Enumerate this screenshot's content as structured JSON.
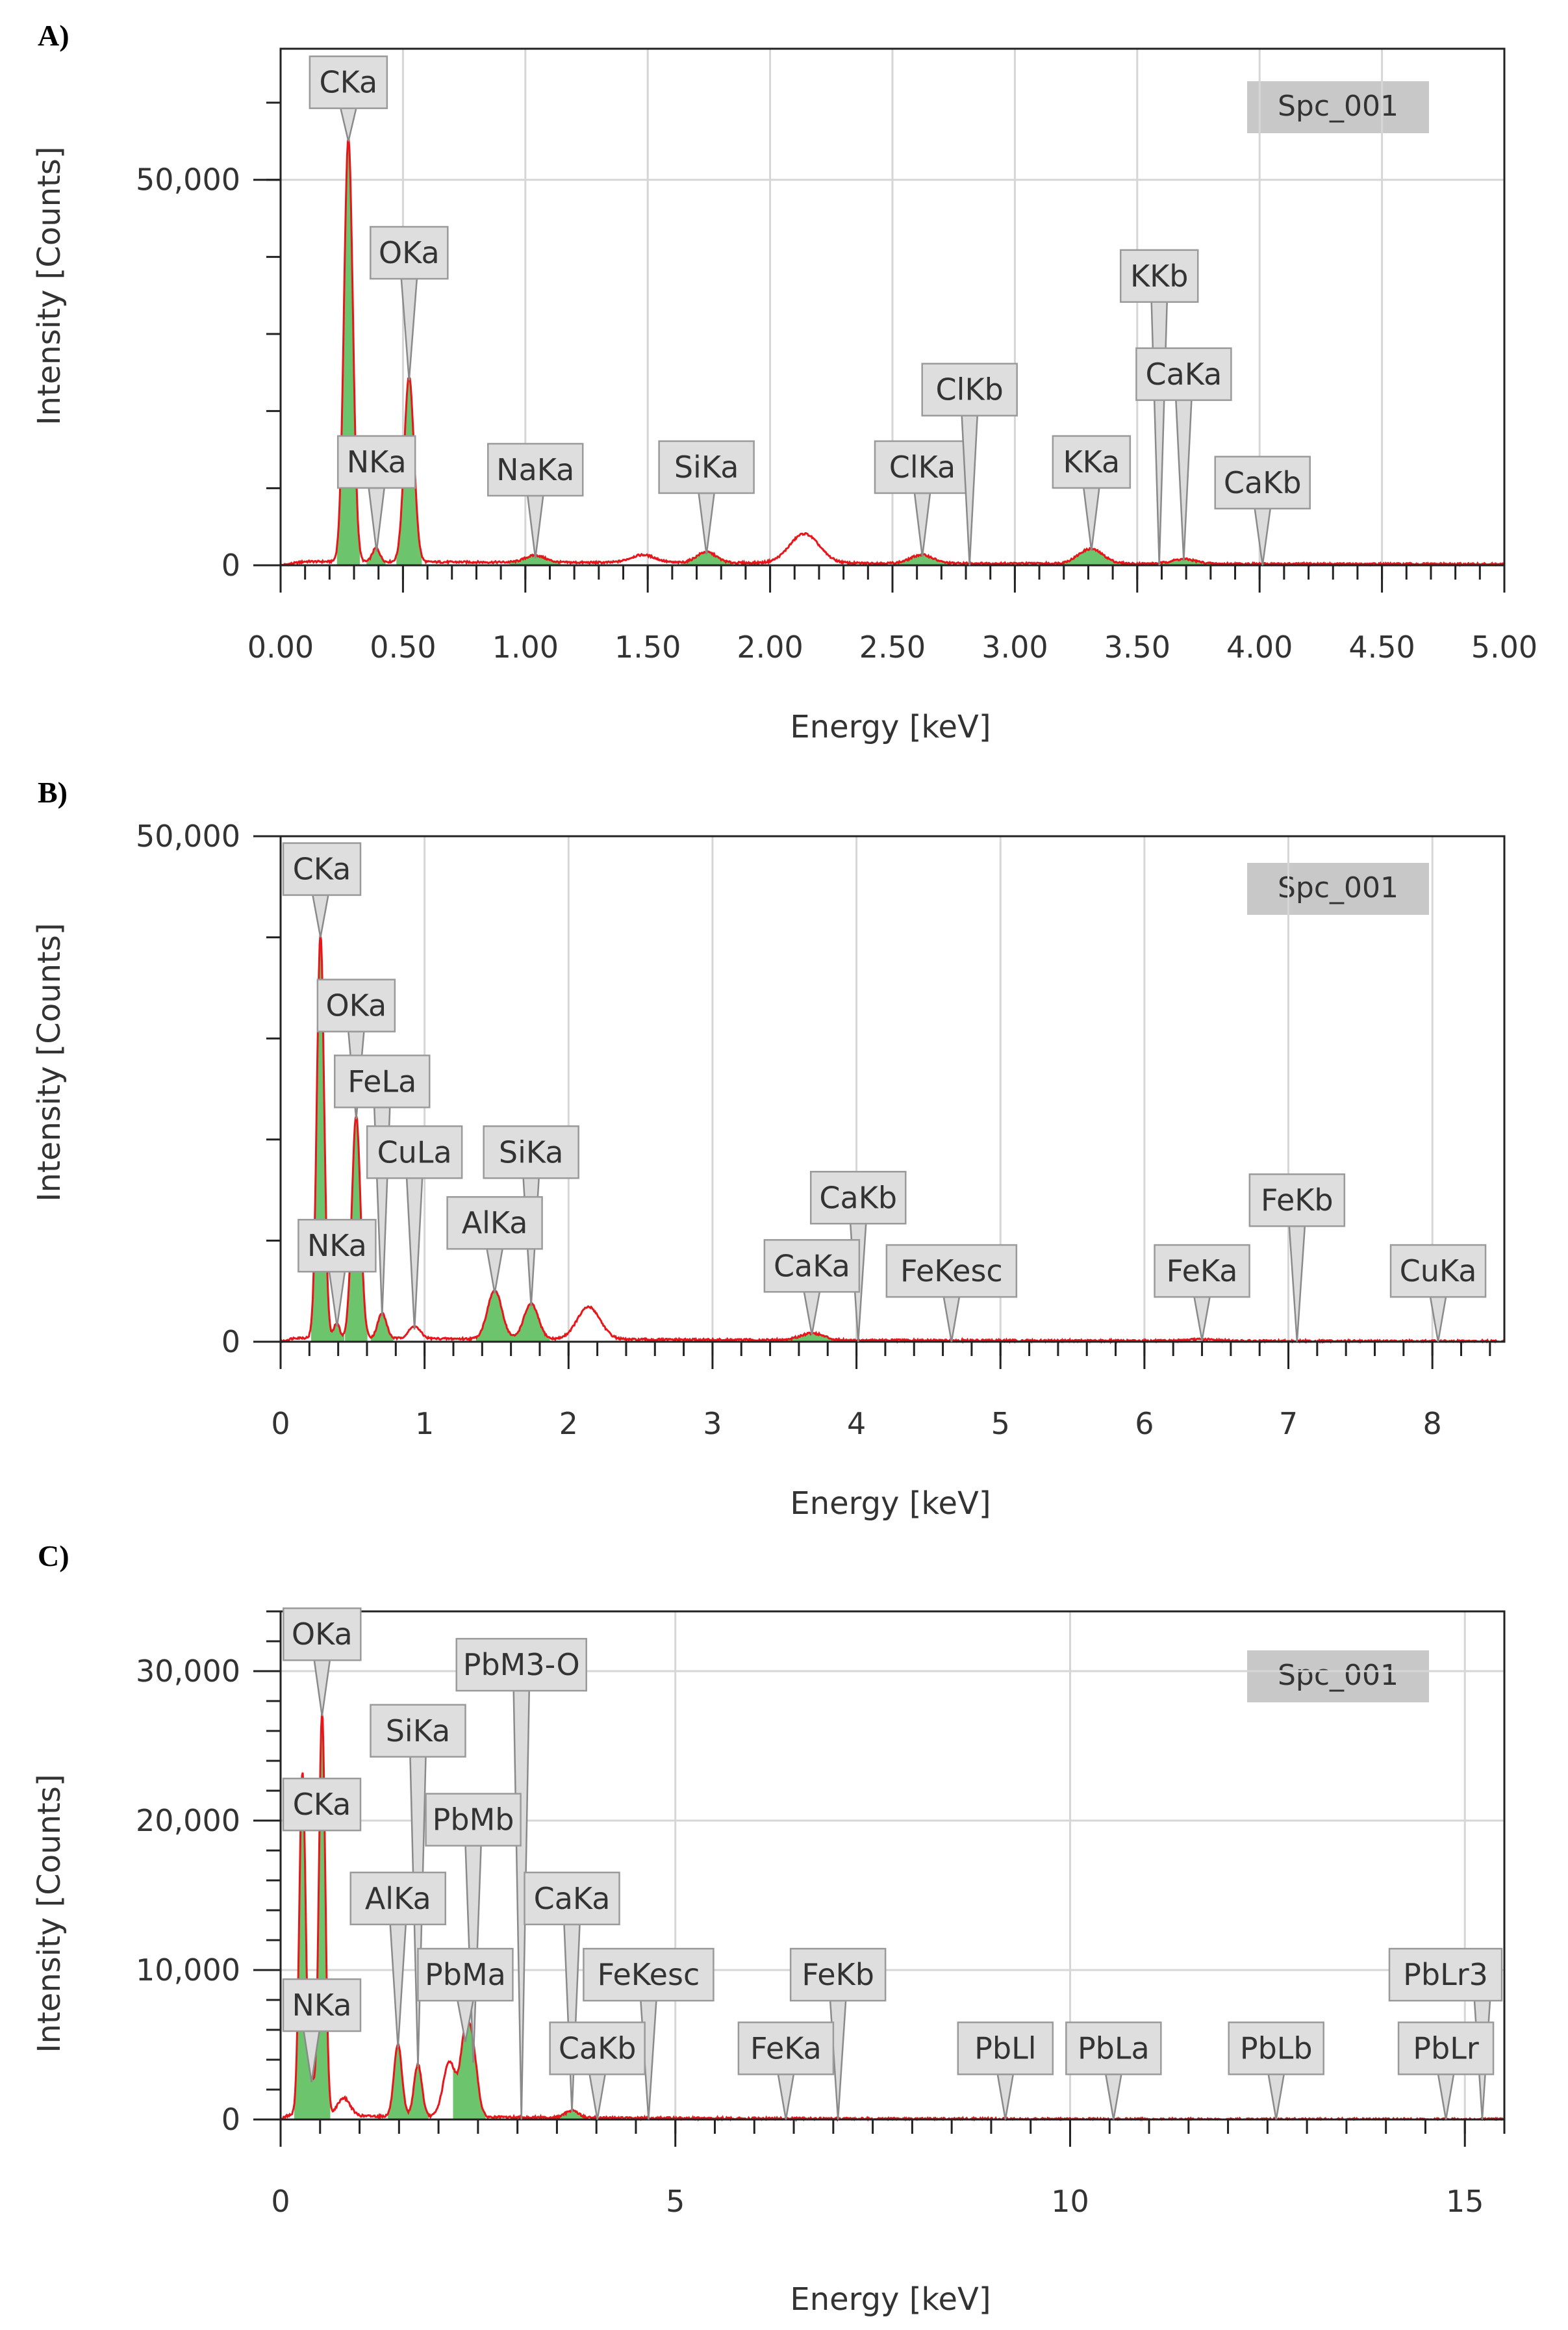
{
  "chart_data": [
    {
      "type": "line",
      "panel": "A)",
      "title": "Spc_001",
      "xlabel": "Energy [keV]",
      "ylabel": "Intensity [Counts]",
      "xlim": [
        0,
        5
      ],
      "ylim": [
        0,
        67000
      ],
      "grid": true,
      "x_ticks": [
        0,
        0.5,
        1,
        1.5,
        2,
        2.5,
        3,
        3.5,
        4,
        4.5,
        5
      ],
      "x_tick_labels": [
        "0.00",
        "0.50",
        "1.00",
        "1.50",
        "2.00",
        "2.50",
        "3.00",
        "3.50",
        "4.00",
        "4.50",
        "5.00"
      ],
      "x_minor_step": 0.1,
      "y_ticks": [
        0,
        50000
      ],
      "y_tick_labels": [
        "0",
        "50,000"
      ],
      "y_minor_step": 10000,
      "peaks": [
        {
          "x": 0.277,
          "y": 55000,
          "w": 0.018,
          "fill": true
        },
        {
          "x": 0.39,
          "y": 1800,
          "w": 0.015,
          "fill": true
        },
        {
          "x": 0.525,
          "y": 24000,
          "w": 0.02,
          "fill": true
        },
        {
          "x": 1.04,
          "y": 900,
          "w": 0.04,
          "fill": true
        },
        {
          "x": 1.48,
          "y": 1000,
          "w": 0.05,
          "fill": false
        },
        {
          "x": 1.74,
          "y": 1400,
          "w": 0.04,
          "fill": true
        },
        {
          "x": 2.14,
          "y": 3800,
          "w": 0.06,
          "fill": false
        },
        {
          "x": 2.62,
          "y": 1100,
          "w": 0.045,
          "fill": true
        },
        {
          "x": 3.31,
          "y": 1900,
          "w": 0.05,
          "fill": true
        },
        {
          "x": 3.69,
          "y": 600,
          "w": 0.05,
          "fill": true
        }
      ],
      "baseline": 500,
      "labels": [
        {
          "text": "CKa",
          "x": 0.277,
          "y": 55000,
          "level": 0.935
        },
        {
          "text": "OKa",
          "x": 0.525,
          "y": 24000,
          "level": 0.605
        },
        {
          "text": "NKa",
          "x": 0.392,
          "y": 1800,
          "level": 0.2
        },
        {
          "text": "NaKa",
          "x": 1.041,
          "y": 900,
          "level": 0.185
        },
        {
          "text": "SiKa",
          "x": 1.74,
          "y": 1400,
          "level": 0.19
        },
        {
          "text": "ClKa",
          "x": 2.622,
          "y": 1100,
          "level": 0.19
        },
        {
          "text": "ClKb",
          "x": 2.815,
          "y": 0,
          "level": 0.34
        },
        {
          "text": "KKa",
          "x": 3.313,
          "y": 1900,
          "level": 0.2
        },
        {
          "text": "KKb",
          "x": 3.59,
          "y": 0,
          "level": 0.56
        },
        {
          "text": "CaKa",
          "x": 3.69,
          "y": 600,
          "level": 0.37
        },
        {
          "text": "CaKb",
          "x": 4.012,
          "y": 0,
          "level": 0.16
        }
      ]
    },
    {
      "type": "line",
      "panel": "B)",
      "title": "Spc_001",
      "xlabel": "Energy [keV]",
      "ylabel": "Intensity [Counts]",
      "xlim": [
        0,
        8.5
      ],
      "ylim": [
        0,
        50000
      ],
      "grid": true,
      "x_ticks": [
        0,
        1,
        2,
        3,
        4,
        5,
        6,
        7,
        8
      ],
      "x_tick_labels": [
        "0",
        "1",
        "2",
        "3",
        "4",
        "5",
        "6",
        "7",
        "8"
      ],
      "x_minor_step": 0.2,
      "y_ticks": [
        0,
        50000
      ],
      "y_tick_labels": [
        "0",
        "50,000"
      ],
      "y_minor_step": 10000,
      "peaks": [
        {
          "x": 0.277,
          "y": 40000,
          "w": 0.025,
          "fill": true
        },
        {
          "x": 0.39,
          "y": 1500,
          "w": 0.02,
          "fill": true
        },
        {
          "x": 0.525,
          "y": 22000,
          "w": 0.03,
          "fill": true
        },
        {
          "x": 0.705,
          "y": 2500,
          "w": 0.03,
          "fill": true
        },
        {
          "x": 0.93,
          "y": 1200,
          "w": 0.04,
          "fill": false
        },
        {
          "x": 1.487,
          "y": 4800,
          "w": 0.05,
          "fill": true
        },
        {
          "x": 1.74,
          "y": 3500,
          "w": 0.05,
          "fill": true
        },
        {
          "x": 2.14,
          "y": 3200,
          "w": 0.08,
          "fill": false
        },
        {
          "x": 3.69,
          "y": 700,
          "w": 0.08,
          "fill": true
        },
        {
          "x": 6.4,
          "y": 150,
          "w": 0.1,
          "fill": false
        }
      ],
      "baseline": 400,
      "labels": [
        {
          "text": "CKa",
          "x": 0.277,
          "y": 40000,
          "level": 0.935
        },
        {
          "text": "OKa",
          "x": 0.525,
          "y": 22000,
          "level": 0.665
        },
        {
          "text": "FeLa",
          "x": 0.705,
          "y": 2500,
          "level": 0.515
        },
        {
          "text": "CuLa",
          "x": 0.93,
          "y": 1200,
          "level": 0.375
        },
        {
          "text": "SiKa",
          "x": 1.74,
          "y": 3500,
          "level": 0.375
        },
        {
          "text": "AlKa",
          "x": 1.487,
          "y": 4800,
          "level": 0.235
        },
        {
          "text": "NKa",
          "x": 0.392,
          "y": 1500,
          "level": 0.19
        },
        {
          "text": "CaKb",
          "x": 4.012,
          "y": 0,
          "level": 0.285
        },
        {
          "text": "CaKa",
          "x": 3.69,
          "y": 700,
          "level": 0.15
        },
        {
          "text": "FeKesc",
          "x": 4.66,
          "y": 0,
          "level": 0.14
        },
        {
          "text": "FeKa",
          "x": 6.4,
          "y": 150,
          "level": 0.14
        },
        {
          "text": "FeKb",
          "x": 7.06,
          "y": 0,
          "level": 0.28
        },
        {
          "text": "CuKa",
          "x": 8.04,
          "y": 0,
          "level": 0.14
        }
      ]
    },
    {
      "type": "line",
      "panel": "C)",
      "title": "Spc_001",
      "xlabel": "Energy [keV]",
      "ylabel": "Intensity [Counts]",
      "xlim": [
        0,
        15.5
      ],
      "ylim": [
        0,
        34000
      ],
      "grid": true,
      "x_ticks": [
        0,
        5,
        10,
        15
      ],
      "x_tick_labels": [
        "0",
        "5",
        "10",
        "15"
      ],
      "x_minor_step": 0.5,
      "y_ticks": [
        0,
        10000,
        20000,
        30000
      ],
      "y_tick_labels": [
        "0",
        "10,000",
        "20,000",
        "30,000"
      ],
      "y_minor_step": 2000,
      "peaks": [
        {
          "x": 0.277,
          "y": 23000,
          "w": 0.04,
          "fill": true
        },
        {
          "x": 0.39,
          "y": 2500,
          "w": 0.03,
          "fill": true
        },
        {
          "x": 0.525,
          "y": 27000,
          "w": 0.04,
          "fill": true
        },
        {
          "x": 0.8,
          "y": 1200,
          "w": 0.08,
          "fill": false
        },
        {
          "x": 1.487,
          "y": 4800,
          "w": 0.05,
          "fill": true
        },
        {
          "x": 1.74,
          "y": 3500,
          "w": 0.05,
          "fill": true
        },
        {
          "x": 2.14,
          "y": 3700,
          "w": 0.08,
          "fill": false
        },
        {
          "x": 2.34,
          "y": 5200,
          "w": 0.06,
          "fill": true
        },
        {
          "x": 2.44,
          "y": 3800,
          "w": 0.06,
          "fill": true
        },
        {
          "x": 3.69,
          "y": 500,
          "w": 0.08,
          "fill": true
        }
      ],
      "baseline": 300,
      "labels": [
        {
          "text": "OKa",
          "x": 0.525,
          "y": 27000,
          "level": 0.955
        },
        {
          "text": "PbM3-O",
          "x": 3.05,
          "y": 0,
          "level": 0.895
        },
        {
          "text": "SiKa",
          "x": 1.74,
          "y": 3500,
          "level": 0.765
        },
        {
          "text": "CKa",
          "x": 0.277,
          "y": 23000,
          "level": 0.62
        },
        {
          "text": "PbMb",
          "x": 2.44,
          "y": 3800,
          "level": 0.59
        },
        {
          "text": "AlKa",
          "x": 1.487,
          "y": 4800,
          "level": 0.435
        },
        {
          "text": "CaKa",
          "x": 3.69,
          "y": 500,
          "level": 0.435
        },
        {
          "text": "PbMa",
          "x": 2.34,
          "y": 5200,
          "level": 0.285
        },
        {
          "text": "FeKesc",
          "x": 4.66,
          "y": 0,
          "level": 0.285
        },
        {
          "text": "FeKb",
          "x": 7.06,
          "y": 0,
          "level": 0.285
        },
        {
          "text": "NKa",
          "x": 0.392,
          "y": 2500,
          "level": 0.225
        },
        {
          "text": "CaKb",
          "x": 4.012,
          "y": 0,
          "level": 0.14
        },
        {
          "text": "FeKa",
          "x": 6.4,
          "y": 0,
          "level": 0.14
        },
        {
          "text": "PbLl",
          "x": 9.18,
          "y": 0,
          "level": 0.14
        },
        {
          "text": "PbLa",
          "x": 10.55,
          "y": 0,
          "level": 0.14
        },
        {
          "text": "PbLb",
          "x": 12.61,
          "y": 0,
          "level": 0.14
        },
        {
          "text": "PbLr3",
          "x": 15.22,
          "y": 0,
          "level": 0.285
        },
        {
          "text": "PbLr",
          "x": 14.76,
          "y": 0,
          "level": 0.14
        }
      ]
    }
  ]
}
